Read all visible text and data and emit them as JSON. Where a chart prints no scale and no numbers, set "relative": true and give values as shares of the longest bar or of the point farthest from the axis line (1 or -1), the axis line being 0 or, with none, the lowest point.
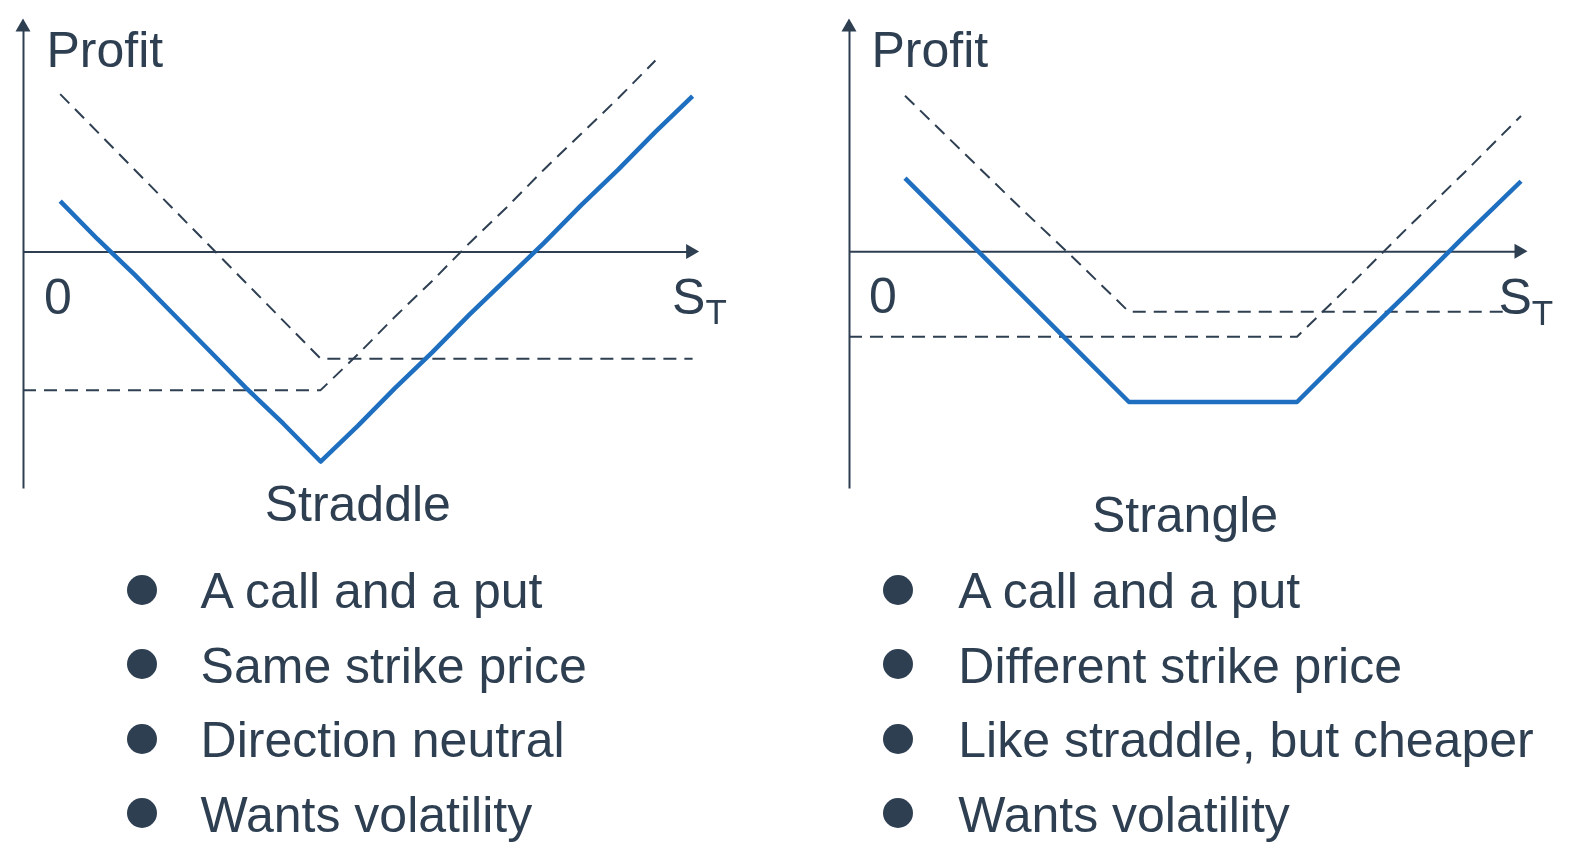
{
  "chart_data": [
    {
      "type": "line",
      "title": "Straddle",
      "xlabel": "S$_{T}$",
      "ylabel": "Profit",
      "relative": true,
      "categories": [
        null,
        null,
        null,
        null,
        null,
        null,
        null,
        null,
        null,
        null,
        null,
        null,
        null,
        null,
        null,
        null,
        null,
        null,
        null
      ],
      "series": [
        {
          "color": "#2e3f52",
          "line_style": "dashed",
          "values": [
            null,
            0.75,
            0.57,
            0.39,
            0.21,
            0.03,
            -0.15,
            -0.33,
            -0.51,
            -0.51,
            -0.51,
            -0.51,
            -0.51,
            -0.51,
            -0.51,
            -0.51,
            -0.51,
            -0.51,
            -0.51
          ]
        },
        {
          "color": "#2e3f52",
          "line_style": "dashed",
          "values": [
            -0.66,
            -0.66,
            -0.66,
            -0.66,
            -0.66,
            -0.66,
            -0.66,
            -0.66,
            -0.66,
            -0.49,
            -0.31,
            -0.14,
            0.04,
            0.21,
            0.39,
            0.56,
            0.73,
            0.91,
            null
          ]
        },
        {
          "color": "#1f6fc0",
          "line_style": "solid",
          "values": [
            null,
            0.24,
            0.06,
            -0.11,
            -0.29,
            -0.47,
            -0.65,
            -0.82,
            -1,
            -0.83,
            -0.65,
            -0.48,
            -0.3,
            -0.13,
            0.04,
            0.22,
            0.39,
            0.57,
            0.74
          ]
        }
      ],
      "annotations": [
        "0",
        "A call and a put",
        "Same strike price",
        "Direction neutral",
        "Wants volatility"
      ]
    },
    {
      "type": "line",
      "title": "Strangle",
      "xlabel": "S$_{T}$",
      "ylabel": "Profit",
      "relative": true,
      "categories": [
        null,
        null,
        null,
        null,
        null,
        null,
        null,
        null,
        null,
        null,
        null,
        null,
        null
      ],
      "series": [
        {
          "color": "#2e3f52",
          "line_style": "dashed",
          "values": [
            null,
            1,
            0.65,
            0.3,
            -0.04,
            -0.39,
            -0.39,
            -0.39,
            -0.39,
            -0.39,
            -0.39,
            -0.39,
            -0.39
          ]
        },
        {
          "color": "#2e3f52",
          "line_style": "dashed",
          "values": [
            -0.55,
            -0.55,
            -0.55,
            -0.55,
            -0.55,
            -0.55,
            -0.55,
            -0.55,
            -0.55,
            -0.2,
            0.16,
            0.51,
            0.87
          ]
        },
        {
          "color": "#1f6fc0",
          "line_style": "solid",
          "values": [
            null,
            0.47,
            0.11,
            -0.25,
            -0.61,
            -0.97,
            -0.97,
            -0.97,
            -0.97,
            -0.61,
            -0.26,
            0.1,
            0.45
          ]
        }
      ],
      "annotations": [
        "0",
        "A call and a put",
        "Different strike price",
        "Like straddle, but cheaper",
        "Wants volatility"
      ]
    }
  ]
}
